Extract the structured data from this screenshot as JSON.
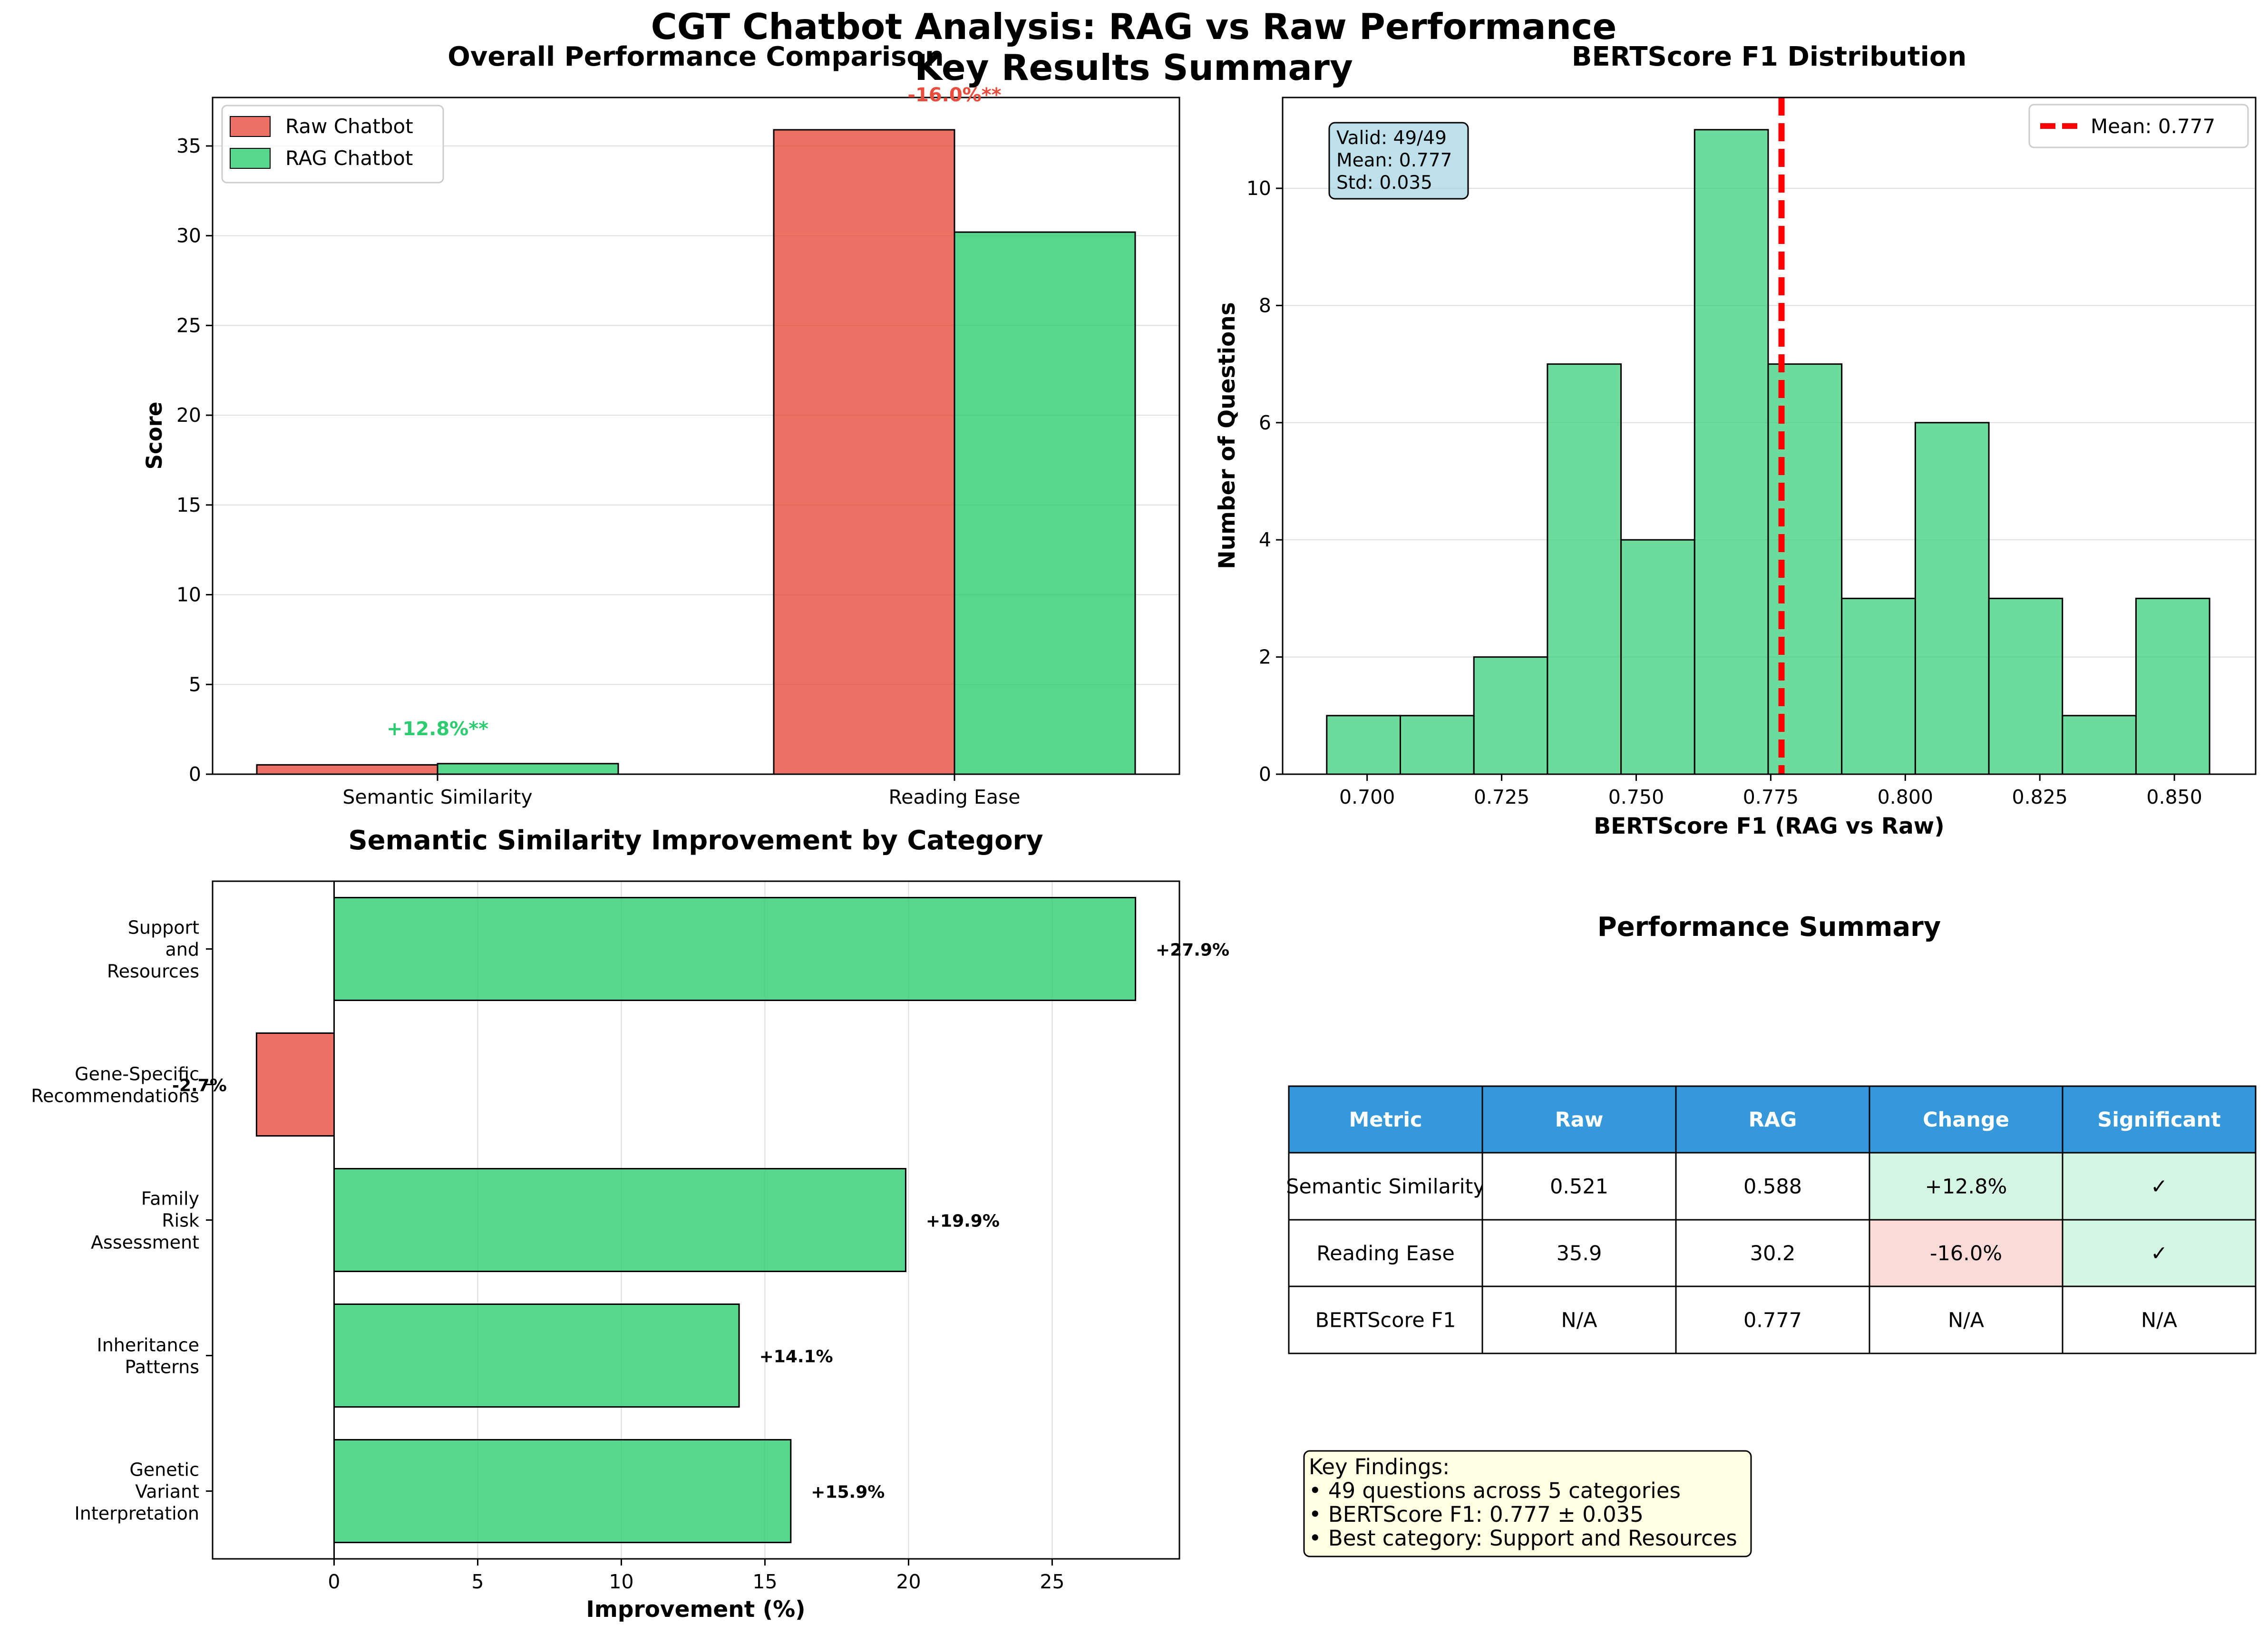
{
  "figure": {
    "title_line1": "CGT Chatbot Analysis: RAG vs Raw Performance",
    "title_line2": "Key Results Summary"
  },
  "colors": {
    "raw": "#e74c3c",
    "rag": "#2ecc71",
    "mean_line": "#ff0000",
    "table_header": "#3498db",
    "positive_cell": "#d5f5e3",
    "negative_cell": "#fadbd8",
    "stats_box": "#add8e6",
    "findings_box": "#ffffe0"
  },
  "chart_data": [
    {
      "type": "bar",
      "title": "Overall Performance Comparison",
      "xlabel": "",
      "ylabel": "Score",
      "categories": [
        "Semantic Similarity",
        "Reading Ease"
      ],
      "series": [
        {
          "name": "Raw Chatbot",
          "values": [
            0.521,
            35.9
          ]
        },
        {
          "name": "RAG Chatbot",
          "values": [
            0.588,
            30.2
          ]
        }
      ],
      "annotations": [
        "+12.8%**",
        "-16.0%**"
      ],
      "ylim": [
        0,
        37.7
      ],
      "yticks": [
        0,
        5,
        10,
        15,
        20,
        25,
        30,
        35
      ],
      "grid": true,
      "legend": "top-left"
    },
    {
      "type": "bar",
      "subtype": "histogram",
      "title": "BERTScore F1 Distribution",
      "xlabel": "BERTScore F1 (RAG vs Raw)",
      "ylabel": "Number of Questions",
      "bin_start": 0.6925,
      "bin_width": 0.01367,
      "counts": [
        1,
        1,
        2,
        7,
        4,
        11,
        7,
        3,
        6,
        3,
        1,
        3
      ],
      "mean": 0.777,
      "mean_label": "Mean: 0.777",
      "stats_box": [
        "Valid: 49/49",
        "Mean: 0.777",
        "Std: 0.035"
      ],
      "xlim": [
        0.6843,
        0.8651
      ],
      "ylim": [
        0,
        11.55
      ],
      "xticks": [
        0.7,
        0.725,
        0.75,
        0.775,
        0.8,
        0.825,
        0.85
      ],
      "yticks": [
        0,
        2,
        4,
        6,
        8,
        10
      ],
      "grid": true,
      "legend": "top-right"
    },
    {
      "type": "bar",
      "orientation": "horizontal",
      "title": "Semantic Similarity Improvement by Category",
      "xlabel": "Improvement (%)",
      "ylabel": "",
      "categories": [
        [
          "Support",
          "and",
          "Resources"
        ],
        [
          "Gene-Specific",
          "Recommendations"
        ],
        [
          "Family",
          "Risk",
          "Assessment"
        ],
        [
          "Inheritance",
          "Patterns"
        ],
        [
          "Genetic",
          "Variant",
          "Interpretation"
        ]
      ],
      "values": [
        27.9,
        -2.7,
        19.9,
        14.1,
        15.9
      ],
      "value_labels": [
        "+27.9%",
        "-2.7%",
        "+19.9%",
        "+14.1%",
        "+15.9%"
      ],
      "xlim": [
        -4.23,
        29.43
      ],
      "xticks": [
        0,
        5,
        10,
        15,
        20,
        25
      ],
      "grid": true
    },
    {
      "type": "table",
      "title": "Performance Summary",
      "columns": [
        "Metric",
        "Raw",
        "RAG",
        "Change",
        "Significant"
      ],
      "rows": [
        [
          "Semantic Similarity",
          "0.521",
          "0.588",
          "+12.8%",
          "✓"
        ],
        [
          "Reading Ease",
          "35.9",
          "30.2",
          "-16.0%",
          "✓"
        ],
        [
          "BERTScore F1",
          "N/A",
          "0.777",
          "N/A",
          "N/A"
        ]
      ],
      "change_state": [
        "positive",
        "negative",
        "none"
      ],
      "significant_state": [
        "positive",
        "positive",
        "none"
      ]
    }
  ],
  "findings": {
    "heading": "Key Findings:",
    "lines": [
      "• 49 questions across 5 categories",
      "• BERTScore F1: 0.777 ± 0.035",
      "• Best category: Support and Resources"
    ]
  }
}
